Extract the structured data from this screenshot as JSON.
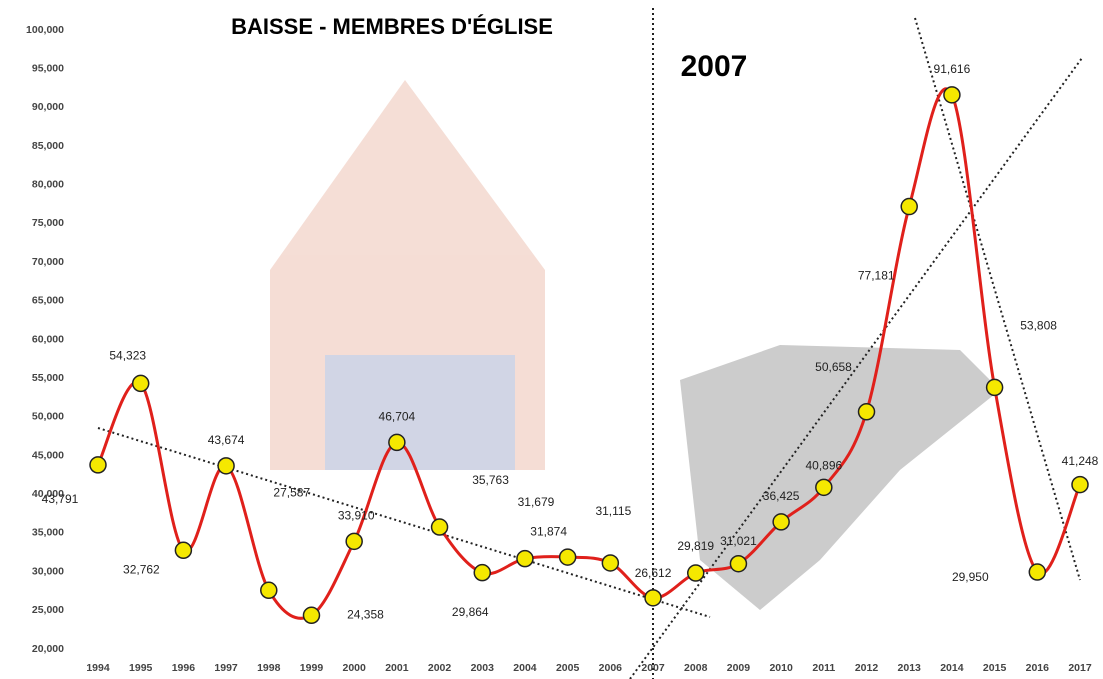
{
  "chart_data": {
    "type": "line",
    "title": "BAISSE - MEMBRES D'ÉGLISE",
    "annotation": "2007",
    "categories": [
      "1994",
      "1995",
      "1996",
      "1997",
      "1998",
      "1999",
      "2000",
      "2001",
      "2002",
      "2003",
      "2004",
      "2005",
      "2006",
      "2007",
      "2008",
      "2009",
      "2010",
      "2011",
      "2012",
      "2013",
      "2014",
      "2015",
      "2016",
      "2017"
    ],
    "values": [
      43791,
      54323,
      32762,
      43674,
      27587,
      24358,
      33910,
      46704,
      35763,
      29864,
      31679,
      31874,
      31115,
      26612,
      29819,
      31021,
      36425,
      40896,
      50658,
      77181,
      91616,
      53808,
      29950,
      41248
    ],
    "value_labels": [
      "43,791",
      "54,323",
      "32,762",
      "43,674",
      "27,587",
      "24,358",
      "33,910",
      "46,704",
      "35,763",
      "29,864",
      "31,679",
      "31,874",
      "31,115",
      "26,612",
      "29,819",
      "31,021",
      "36,425",
      "40,896",
      "50,658",
      "77,181",
      "91,616",
      "53,808",
      "29,950",
      "41,248"
    ],
    "color": "#e0201b",
    "marker_color": "#f5e800",
    "ylim": [
      20000,
      100000
    ],
    "yticks": [
      {
        "value": 20000,
        "label": "20,000"
      },
      {
        "value": 25000,
        "label": "25,000"
      },
      {
        "value": 30000,
        "label": "30,000"
      },
      {
        "value": 35000,
        "label": "35,000"
      },
      {
        "value": 40000,
        "label": "40,000"
      },
      {
        "value": 45000,
        "label": "45,000"
      },
      {
        "value": 50000,
        "label": "50,000"
      },
      {
        "value": 55000,
        "label": "55,000"
      },
      {
        "value": 60000,
        "label": "60,000"
      },
      {
        "value": 65000,
        "label": "65,000"
      },
      {
        "value": 70000,
        "label": "70,000"
      },
      {
        "value": 75000,
        "label": "75,000"
      },
      {
        "value": 80000,
        "label": "80,000"
      },
      {
        "value": 85000,
        "label": "85,000"
      },
      {
        "value": 90000,
        "label": "90,000"
      },
      {
        "value": 95000,
        "label": "95,000"
      },
      {
        "value": 100000,
        "label": "100,000"
      }
    ],
    "grid": false
  }
}
